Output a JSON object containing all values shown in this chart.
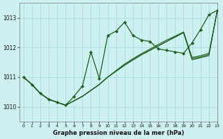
{
  "title": "Graphe pression niveau de la mer (hPa)",
  "bg_color": "#cef0f0",
  "grid_color": "#99dddd",
  "line_color": "#1a5c1a",
  "xlim": [
    -0.5,
    23
  ],
  "ylim": [
    1009.5,
    1013.5
  ],
  "yticks": [
    1010,
    1011,
    1012,
    1013
  ],
  "xticks": [
    0,
    1,
    2,
    3,
    4,
    5,
    6,
    7,
    8,
    9,
    10,
    11,
    12,
    13,
    14,
    15,
    16,
    17,
    18,
    19,
    20,
    21,
    22,
    23
  ],
  "main_line": [
    1011.0,
    1010.75,
    1010.45,
    1010.25,
    1010.15,
    1010.05,
    1010.35,
    1010.7,
    1011.85,
    1010.95,
    1012.4,
    1012.55,
    1012.85,
    1012.4,
    1012.25,
    1012.2,
    1011.95,
    1011.9,
    1011.85,
    1011.8,
    1012.15,
    1012.6,
    1013.1,
    1013.25
  ],
  "trend1": [
    1011.0,
    1010.75,
    1010.45,
    1010.25,
    1010.15,
    1010.05,
    1010.2,
    1010.35,
    1010.55,
    1010.75,
    1011.0,
    1011.2,
    1011.4,
    1011.58,
    1011.75,
    1011.9,
    1012.05,
    1012.2,
    1012.35,
    1012.5,
    1011.58,
    1011.65,
    1011.72,
    1013.25
  ],
  "trend2": [
    1011.0,
    1010.75,
    1010.45,
    1010.25,
    1010.15,
    1010.05,
    1010.2,
    1010.35,
    1010.55,
    1010.75,
    1011.0,
    1011.2,
    1011.4,
    1011.58,
    1011.75,
    1011.9,
    1012.05,
    1012.2,
    1012.35,
    1012.5,
    1011.62,
    1011.68,
    1011.76,
    1013.25
  ],
  "trend3": [
    1011.0,
    1010.75,
    1010.45,
    1010.25,
    1010.15,
    1010.05,
    1010.2,
    1010.35,
    1010.55,
    1010.75,
    1011.0,
    1011.22,
    1011.44,
    1011.62,
    1011.79,
    1011.94,
    1012.1,
    1012.25,
    1012.38,
    1012.52,
    1011.66,
    1011.72,
    1011.8,
    1013.25
  ]
}
